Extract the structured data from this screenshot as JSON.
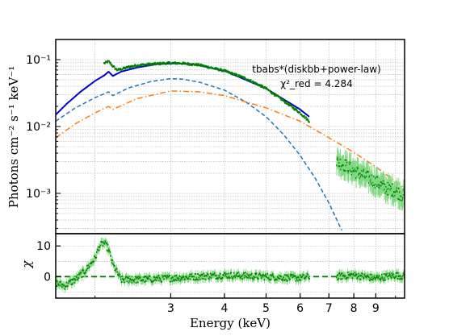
{
  "chart_data": {
    "type": "scatter",
    "x_scale": "log",
    "xlim": [
      1.62,
      10.5
    ],
    "xlabel": "Energy (keV)",
    "x_ticks": [
      3,
      4,
      5,
      6,
      7,
      8,
      9
    ],
    "x_tick_labels": [
      "3",
      "4",
      "5",
      "6",
      "7",
      "8",
      "9"
    ],
    "grid": true,
    "panels": [
      {
        "name": "spectrum",
        "y_scale": "log",
        "ylim": [
          0.00025,
          0.2
        ],
        "ylabel": "Photons cm⁻² s⁻¹ keV⁻¹",
        "y_ticks": [
          0.001,
          0.01,
          0.1
        ],
        "y_tick_labels": [
          "10⁻³",
          "10⁻²",
          "10⁻¹"
        ],
        "annotations": [
          "tbabs*(diskbb+power-law)",
          "χ²_red = 4.284"
        ],
        "series": [
          {
            "kind": "model-total",
            "color": "#0000cc",
            "style": "solid",
            "segments": [
              {
                "x": [
                  1.62,
                  1.72,
                  1.85,
                  2.0,
                  2.1,
                  2.15,
                  2.2,
                  2.3,
                  2.5,
                  2.8,
                  3.1,
                  3.4,
                  4.0,
                  5.0,
                  6.0,
                  6.3
                ],
                "y": [
                  0.015,
                  0.022,
                  0.033,
                  0.048,
                  0.058,
                  0.066,
                  0.057,
                  0.066,
                  0.076,
                  0.086,
                  0.088,
                  0.085,
                  0.068,
                  0.037,
                  0.018,
                  0.014
                ]
              },
              {
                "x": [
                  7.3,
                  8.0,
                  9.0,
                  10.0,
                  10.5
                ],
                "y": [
                  0.003,
                  0.0022,
                  0.0015,
                  0.0011,
                  0.00095
                ]
              }
            ]
          },
          {
            "kind": "diskbb",
            "color": "#1f77b4",
            "style": "dashed",
            "x": [
              1.62,
              1.8,
              2.0,
              2.15,
              2.2,
              2.4,
              2.7,
              3.0,
              3.2,
              3.5,
              4.0,
              4.5,
              5.0,
              5.5,
              6.0,
              6.5,
              7.0,
              7.5
            ],
            "y": [
              0.012,
              0.019,
              0.027,
              0.033,
              0.029,
              0.038,
              0.047,
              0.052,
              0.051,
              0.046,
              0.035,
              0.023,
              0.014,
              0.0075,
              0.0037,
              0.0017,
              0.00072,
              0.00028
            ]
          },
          {
            "kind": "power-law",
            "color": "#ff7f0e",
            "style": "dashdot",
            "x": [
              1.62,
              1.8,
              2.0,
              2.15,
              2.2,
              2.5,
              3.0,
              3.5,
              4.0,
              5.0,
              6.0,
              7.0,
              8.0,
              9.0,
              10.0,
              10.5
            ],
            "y": [
              0.0068,
              0.011,
              0.016,
              0.02,
              0.018,
              0.026,
              0.034,
              0.033,
              0.029,
              0.019,
              0.012,
              0.0068,
              0.0041,
              0.0025,
              0.0015,
              0.0012
            ]
          },
          {
            "kind": "data-observed",
            "color": "#008000",
            "segments": [
              {
                "x": [
                  2.1,
                  2.15,
                  2.2,
                  2.25,
                  2.3,
                  2.4,
                  2.5,
                  2.6,
                  2.8,
                  3.0,
                  3.2,
                  3.5,
                  4.0,
                  4.5,
                  5.0,
                  5.5,
                  6.0,
                  6.3
                ],
                "y": [
                  0.088,
                  0.094,
                  0.08,
                  0.07,
                  0.072,
                  0.078,
                  0.082,
                  0.084,
                  0.087,
                  0.089,
                  0.088,
                  0.083,
                  0.068,
                  0.052,
                  0.037,
                  0.024,
                  0.016,
                  0.012
                ]
              },
              {
                "x": [
                  7.3,
                  7.6,
                  8.0,
                  8.5,
                  9.0,
                  9.5,
                  10.0,
                  10.5
                ],
                "y": [
                  0.003,
                  0.0027,
                  0.0022,
                  0.0018,
                  0.0015,
                  0.0012,
                  0.0011,
                  0.0009
                ]
              }
            ]
          }
        ]
      },
      {
        "name": "residuals",
        "y_scale": "linear",
        "ylim": [
          -7,
          14
        ],
        "ylabel": "χ",
        "y_ticks": [
          0,
          10
        ],
        "y_tick_labels": [
          "0",
          "10"
        ],
        "zero_line": {
          "y": 0,
          "color": "#008000",
          "style": "dashed"
        },
        "series": [
          {
            "kind": "residuals",
            "color": "#008000",
            "segments": [
              {
                "x": [
                  1.62,
                  1.7,
                  1.8,
                  1.9,
                  2.0,
                  2.05,
                  2.1,
                  2.15,
                  2.2,
                  2.3,
                  2.5,
                  3.0,
                  4.0,
                  5.0,
                  6.0,
                  6.3
                ],
                "y": [
                  -2.0,
                  -3.0,
                  -1.0,
                  2.0,
                  6.0,
                  10.0,
                  11.0,
                  9.0,
                  4.0,
                  -1.0,
                  -1.0,
                  -0.5,
                  0.5,
                  0.0,
                  -0.5,
                  0.0
                ]
              },
              {
                "x": [
                  7.3,
                  8.0,
                  9.0,
                  10.0,
                  10.5
                ],
                "y": [
                  0.0,
                  0.5,
                  -0.5,
                  0.5,
                  0.0
                ]
              }
            ]
          }
        ]
      }
    ]
  }
}
